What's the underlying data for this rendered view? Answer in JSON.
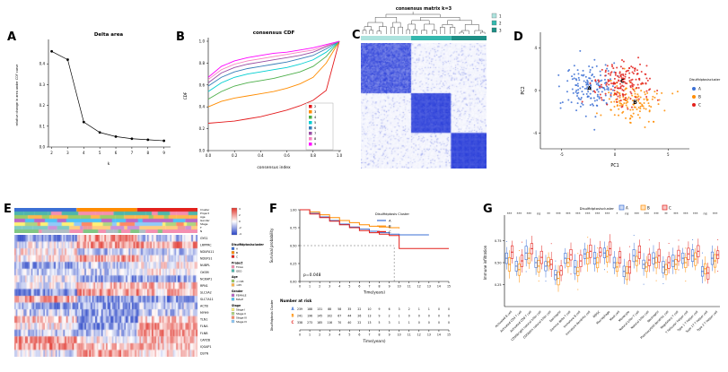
{
  "panels": [
    {
      "letter": "A"
    },
    {
      "letter": "B"
    },
    {
      "letter": "C"
    },
    {
      "letter": "D"
    },
    {
      "letter": "E"
    },
    {
      "letter": "F"
    },
    {
      "letter": "G"
    }
  ],
  "chart_data": [
    {
      "panel": "A",
      "type": "line",
      "title": "Delta area",
      "xlabel": "k",
      "ylabel": "relative change in area under CDF curve",
      "x": [
        2,
        3,
        4,
        5,
        6,
        7,
        8,
        9
      ],
      "values": [
        0.46,
        0.42,
        0.12,
        0.07,
        0.05,
        0.04,
        0.035,
        0.03
      ],
      "xlim": [
        1.8,
        9.3
      ],
      "ylim": [
        0,
        0.5
      ],
      "xticks": [
        2,
        3,
        4,
        5,
        6,
        7,
        8,
        9
      ],
      "yticks": [
        0,
        0.1,
        0.2,
        0.3,
        0.4
      ]
    },
    {
      "panel": "B",
      "type": "line",
      "title": "consensus CDF",
      "xlabel": "consensus index",
      "ylabel": "CDF",
      "x": [
        0,
        0.1,
        0.2,
        0.3,
        0.4,
        0.5,
        0.6,
        0.7,
        0.8,
        0.9,
        1.0
      ],
      "series": [
        {
          "name": "2",
          "color": "#E41A1C",
          "values": [
            0.25,
            0.26,
            0.27,
            0.29,
            0.31,
            0.34,
            0.37,
            0.41,
            0.46,
            0.55,
            1.0
          ]
        },
        {
          "name": "3",
          "color": "#FF8C00",
          "values": [
            0.4,
            0.45,
            0.48,
            0.5,
            0.52,
            0.54,
            0.57,
            0.61,
            0.67,
            0.8,
            1.0
          ]
        },
        {
          "name": "4",
          "color": "#4DAF4A",
          "values": [
            0.47,
            0.54,
            0.59,
            0.62,
            0.64,
            0.66,
            0.69,
            0.72,
            0.77,
            0.86,
            1.0
          ]
        },
        {
          "name": "5",
          "color": "#00CED1",
          "values": [
            0.54,
            0.62,
            0.67,
            0.7,
            0.72,
            0.74,
            0.76,
            0.79,
            0.83,
            0.9,
            1.0
          ]
        },
        {
          "name": "6",
          "color": "#377EB8",
          "values": [
            0.59,
            0.67,
            0.72,
            0.75,
            0.77,
            0.79,
            0.81,
            0.84,
            0.87,
            0.93,
            1.0
          ]
        },
        {
          "name": "7",
          "color": "#984EA3",
          "values": [
            0.62,
            0.71,
            0.76,
            0.79,
            0.81,
            0.83,
            0.85,
            0.87,
            0.9,
            0.95,
            1.0
          ]
        },
        {
          "name": "8",
          "color": "#F781BF",
          "values": [
            0.65,
            0.74,
            0.79,
            0.82,
            0.84,
            0.86,
            0.88,
            0.9,
            0.92,
            0.96,
            1.0
          ]
        },
        {
          "name": "9",
          "color": "#FF00FF",
          "values": [
            0.67,
            0.77,
            0.82,
            0.85,
            0.87,
            0.89,
            0.9,
            0.92,
            0.94,
            0.97,
            1.0
          ]
        }
      ],
      "xticks": [
        0,
        0.2,
        0.4,
        0.6,
        0.8,
        1.0
      ],
      "yticks": [
        0,
        0.2,
        0.4,
        0.6,
        0.8,
        1.0
      ]
    },
    {
      "panel": "C",
      "type": "heatmap",
      "title": "consensus matrix k=3",
      "legend_labels": [
        "1",
        "2",
        "3"
      ],
      "legend_colors": [
        "#AEE3DE",
        "#35B8AE",
        "#1E8F86"
      ],
      "cluster_fractions": [
        0.4,
        0.32,
        0.28
      ],
      "n_samples": 120,
      "low_color": "#FFFFFF",
      "high_color": "#2B3FD9"
    },
    {
      "panel": "D",
      "type": "scatter",
      "xlabel": "PC1",
      "ylabel": "PC2",
      "legend_title": "Disulfidptosiscluster",
      "clusters": [
        {
          "name": "A",
          "color": "#3B6FD4",
          "center": [
            -2.4,
            0.2
          ],
          "spread": 1.35,
          "n": 150
        },
        {
          "name": "B",
          "color": "#FF8C00",
          "center": [
            1.9,
            -1.1
          ],
          "spread": 1.25,
          "n": 130
        },
        {
          "name": "C",
          "color": "#E3211C",
          "center": [
            0.7,
            0.9
          ],
          "spread": 1.15,
          "n": 170
        }
      ],
      "xlim": [
        -7,
        7
      ],
      "ylim": [
        -5.5,
        5.5
      ],
      "xticks": [
        -5,
        0,
        5
      ],
      "yticks": [
        -4,
        0,
        4
      ]
    },
    {
      "panel": "E",
      "type": "heatmap",
      "rows": [
        "GYS1",
        "LRPPRC",
        "NDUFA11",
        "NDUFS1",
        "NUBPL",
        "OXSM",
        "NCKAP1",
        "RPN1",
        "SLC3A2",
        "SLC7A11",
        "ACTB",
        "MYH9",
        "TLN1",
        "FLNA",
        "FLNB",
        "CAPZB",
        "IQGAP1",
        "DSTN"
      ],
      "n_cols": 120,
      "cluster_fractions": [
        0.34,
        0.33,
        0.33
      ],
      "annotation_rows": [
        {
          "name": "Cluster",
          "colors": [
            "#3B6FD4",
            "#FF8C00",
            "#E3211C"
          ],
          "segmented": true
        },
        {
          "name": "Project",
          "colors": [
            "#F48FB1",
            "#4DB6AC"
          ]
        },
        {
          "name": "Age",
          "colors": [
            "#9CCC65",
            "#FFB74D"
          ]
        },
        {
          "name": "Gender",
          "colors": [
            "#BA68C8",
            "#4FC3F7"
          ]
        },
        {
          "name": "Stage",
          "colors": [
            "#FFF176",
            "#AED581",
            "#FF8A65",
            "#90CAF9"
          ]
        },
        {
          "name": "T",
          "colors": [
            "#CE93D8",
            "#80CBC4",
            "#FFCC80",
            "#EF9A9A"
          ]
        },
        {
          "name": "N",
          "colors": [
            "#B0BEC5",
            "#F48FB1",
            "#81C784"
          ]
        }
      ],
      "legend_groups": [
        {
          "title": "Disulfidptosiscluster",
          "entries": [
            {
              "label": "A",
              "color": "#3B6FD4"
            },
            {
              "label": "B",
              "color": "#FF8C00"
            },
            {
              "label": "C",
              "color": "#E3211C"
            }
          ]
        },
        {
          "title": "Project",
          "entries": [
            {
              "label": "TCGA",
              "color": "#F48FB1"
            },
            {
              "label": "GEO",
              "color": "#4DB6AC"
            }
          ]
        },
        {
          "title": "Age",
          "entries": [
            {
              "label": "<=65",
              "color": "#9CCC65"
            },
            {
              "label": ">65",
              "color": "#FFB74D"
            }
          ]
        },
        {
          "title": "Gender",
          "entries": [
            {
              "label": "FEMALE",
              "color": "#BA68C8"
            },
            {
              "label": "MALE",
              "color": "#4FC3F7"
            }
          ]
        },
        {
          "title": "Stage",
          "entries": [
            {
              "label": "Stage I",
              "color": "#FFF176"
            },
            {
              "label": "Stage II",
              "color": "#AED581"
            },
            {
              "label": "Stage III",
              "color": "#FF8A65"
            },
            {
              "label": "Stage IV",
              "color": "#90CAF9"
            }
          ]
        }
      ],
      "colorbar": {
        "labels": [
          "4",
          "2",
          "0",
          "-2",
          "-4"
        ],
        "top_color": "#E0342B",
        "mid_color": "#FFFFFF",
        "bottom_color": "#2743C6"
      }
    },
    {
      "panel": "F",
      "type": "line",
      "ylabel": "Survival probability",
      "xlabel": "Time(years)",
      "p_label": "p=0.048",
      "legend_title": "Disulfidptosis Cluster",
      "series": [
        {
          "name": "A",
          "color": "#3B6FD4",
          "times": [
            0,
            1,
            2,
            3,
            4,
            5,
            6,
            7,
            8,
            9,
            10,
            11,
            13
          ],
          "surv": [
            1.0,
            0.95,
            0.9,
            0.85,
            0.8,
            0.76,
            0.73,
            0.7,
            0.68,
            0.66,
            0.65,
            0.65,
            0.65
          ]
        },
        {
          "name": "B",
          "color": "#FF8C00",
          "times": [
            0,
            1,
            2,
            3,
            4,
            5,
            6,
            7,
            8,
            9,
            10
          ],
          "surv": [
            1.0,
            0.97,
            0.93,
            0.89,
            0.85,
            0.82,
            0.79,
            0.77,
            0.76,
            0.75,
            0.74
          ]
        },
        {
          "name": "C",
          "color": "#E3211C",
          "times": [
            0,
            1,
            2,
            3,
            4,
            5,
            6,
            7,
            8,
            9,
            10,
            15
          ],
          "surv": [
            1.0,
            0.94,
            0.89,
            0.84,
            0.79,
            0.75,
            0.71,
            0.68,
            0.66,
            0.64,
            0.46,
            0.46
          ]
        }
      ],
      "dashed_h": 0.5,
      "dashed_v": 9.5,
      "xticks": [
        0,
        1,
        2,
        3,
        4,
        5,
        6,
        7,
        8,
        9,
        10,
        11,
        12,
        13,
        14,
        15
      ],
      "yticks": [
        0,
        0.25,
        0.5,
        0.75,
        1
      ],
      "risk_table": {
        "title": "Number at risk",
        "axis_label": "Disulfidptosis Cluster",
        "rows": [
          {
            "name": "A",
            "color": "#3B6FD4",
            "values": [
              239,
              188,
              131,
              88,
              58,
              35,
              22,
              10,
              9,
              6,
              3,
              2,
              1,
              1,
              0,
              0
            ]
          },
          {
            "name": "B",
            "color": "#FF8C00",
            "values": [
              241,
              196,
              145,
              102,
              67,
              44,
              26,
              13,
              9,
              2,
              1,
              0,
              0,
              0,
              0,
              0
            ]
          },
          {
            "name": "C",
            "color": "#E3211C",
            "values": [
              338,
              273,
              185,
              116,
              70,
              40,
              22,
              13,
              5,
              3,
              1,
              1,
              0,
              0,
              0,
              0
            ]
          }
        ]
      }
    },
    {
      "panel": "G",
      "type": "box",
      "ylabel": "Immune infiltration",
      "legend_title": "Disulfidptosiscluster",
      "groups": [
        "A",
        "B",
        "C"
      ],
      "colors": [
        "#3B6FD4",
        "#FF8C00",
        "#E3211C"
      ],
      "categories": [
        "Activated B cell",
        "Activated CD4 T cell",
        "Activated CD8 T cell",
        "CD56bright natural killer cell",
        "CD56dim natural killer cell",
        "Eosinophil",
        "Gamma delta T cell",
        "Immature B cell",
        "Immature dendritic cell",
        "MDSC",
        "Macrophage",
        "Mast cell",
        "Monocyte",
        "Natural killer T cell",
        "Natural killer cell",
        "Neutrophil",
        "Plasmacytoid dendritic cell",
        "Regulatory T cell",
        "T follicular helper cell",
        "Type 1 T helper cell",
        "Type 17 T helper cell",
        "Type 2 T helper cell"
      ],
      "medians": [
        [
          0.55,
          0.48,
          0.62
        ],
        [
          0.46,
          0.42,
          0.52
        ],
        [
          0.61,
          0.55,
          0.66
        ],
        [
          0.5,
          0.46,
          0.56
        ],
        [
          0.46,
          0.51,
          0.48
        ],
        [
          0.36,
          0.32,
          0.41
        ],
        [
          0.55,
          0.5,
          0.59
        ],
        [
          0.45,
          0.4,
          0.52
        ],
        [
          0.6,
          0.55,
          0.63
        ],
        [
          0.55,
          0.5,
          0.62
        ],
        [
          0.61,
          0.57,
          0.66
        ],
        [
          0.5,
          0.45,
          0.56
        ],
        [
          0.4,
          0.38,
          0.45
        ],
        [
          0.58,
          0.52,
          0.62
        ],
        [
          0.48,
          0.45,
          0.53
        ],
        [
          0.55,
          0.5,
          0.58
        ],
        [
          0.45,
          0.42,
          0.5
        ],
        [
          0.52,
          0.48,
          0.58
        ],
        [
          0.55,
          0.5,
          0.6
        ],
        [
          0.58,
          0.54,
          0.63
        ],
        [
          0.4,
          0.43,
          0.38
        ],
        [
          0.55,
          0.52,
          0.59
        ]
      ],
      "sig": [
        "***",
        "***",
        "***",
        "ns",
        "**",
        "***",
        "***",
        "***",
        "***",
        "***",
        "***",
        "*",
        "ns",
        "***",
        "***",
        "***",
        "**",
        "***",
        "***",
        "***",
        "ns",
        "***"
      ],
      "yticks": [
        0.25,
        0.5,
        0.75
      ],
      "ylim": [
        0,
        1
      ]
    }
  ]
}
